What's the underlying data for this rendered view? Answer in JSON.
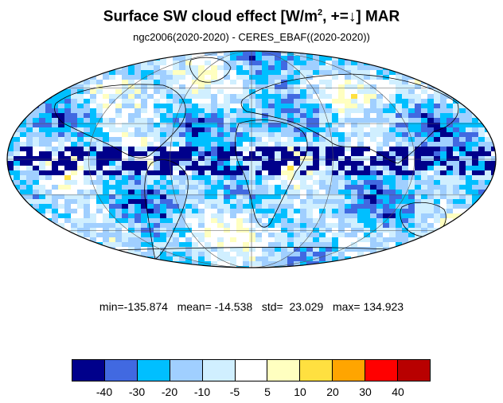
{
  "title": {
    "main": "Surface SW cloud effect [W/m",
    "sup": "2",
    "tail": ", +=↓]  MAR"
  },
  "subtitle": "ngc2006(2020-2020) - CERES_EBAF((2020-2020))",
  "stats": {
    "text": "min=-135.874   mean= -14.538   std=  23.029   max= 134.923",
    "min": -135.874,
    "mean": -14.538,
    "std": 23.029,
    "max": 134.923
  },
  "colorbar": {
    "colors": [
      "#00008b",
      "#4169e1",
      "#00bfff",
      "#a0cfff",
      "#d0efff",
      "#ffffff",
      "#ffffc0",
      "#ffe040",
      "#ffa500",
      "#ff0000",
      "#b80000"
    ],
    "labels": [
      "-40",
      "-30",
      "-20",
      "-10",
      "-5",
      "5",
      "10",
      "20",
      "30",
      "40"
    ]
  },
  "map": {
    "projection": "mollweide",
    "graticule": true,
    "coastlines": true
  }
}
